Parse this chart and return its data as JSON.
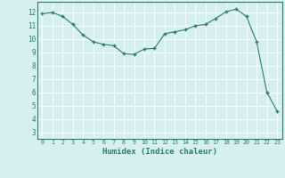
{
  "x": [
    0,
    1,
    2,
    3,
    4,
    5,
    6,
    7,
    8,
    9,
    10,
    11,
    12,
    13,
    14,
    15,
    16,
    17,
    18,
    19,
    20,
    21,
    22,
    23
  ],
  "y": [
    11.9,
    12.0,
    11.7,
    11.1,
    10.3,
    9.8,
    9.6,
    9.5,
    8.9,
    8.85,
    9.25,
    9.3,
    10.4,
    10.55,
    10.7,
    11.0,
    11.1,
    11.55,
    12.05,
    12.25,
    11.7,
    9.8,
    6.0,
    4.6
  ],
  "xlabel": "Humidex (Indice chaleur)",
  "ylim": [
    2.5,
    12.8
  ],
  "xlim": [
    -0.5,
    23.5
  ],
  "yticks": [
    3,
    4,
    5,
    6,
    7,
    8,
    9,
    10,
    11,
    12
  ],
  "xticks": [
    0,
    1,
    2,
    3,
    4,
    5,
    6,
    7,
    8,
    9,
    10,
    11,
    12,
    13,
    14,
    15,
    16,
    17,
    18,
    19,
    20,
    21,
    22,
    23
  ],
  "line_color": "#2d7d6e",
  "marker": "+",
  "bg_color": "#d6f0f0",
  "grid_color": "#b0d8d8",
  "tick_color": "#2d7d6e",
  "spine_color": "#2d7d6e"
}
